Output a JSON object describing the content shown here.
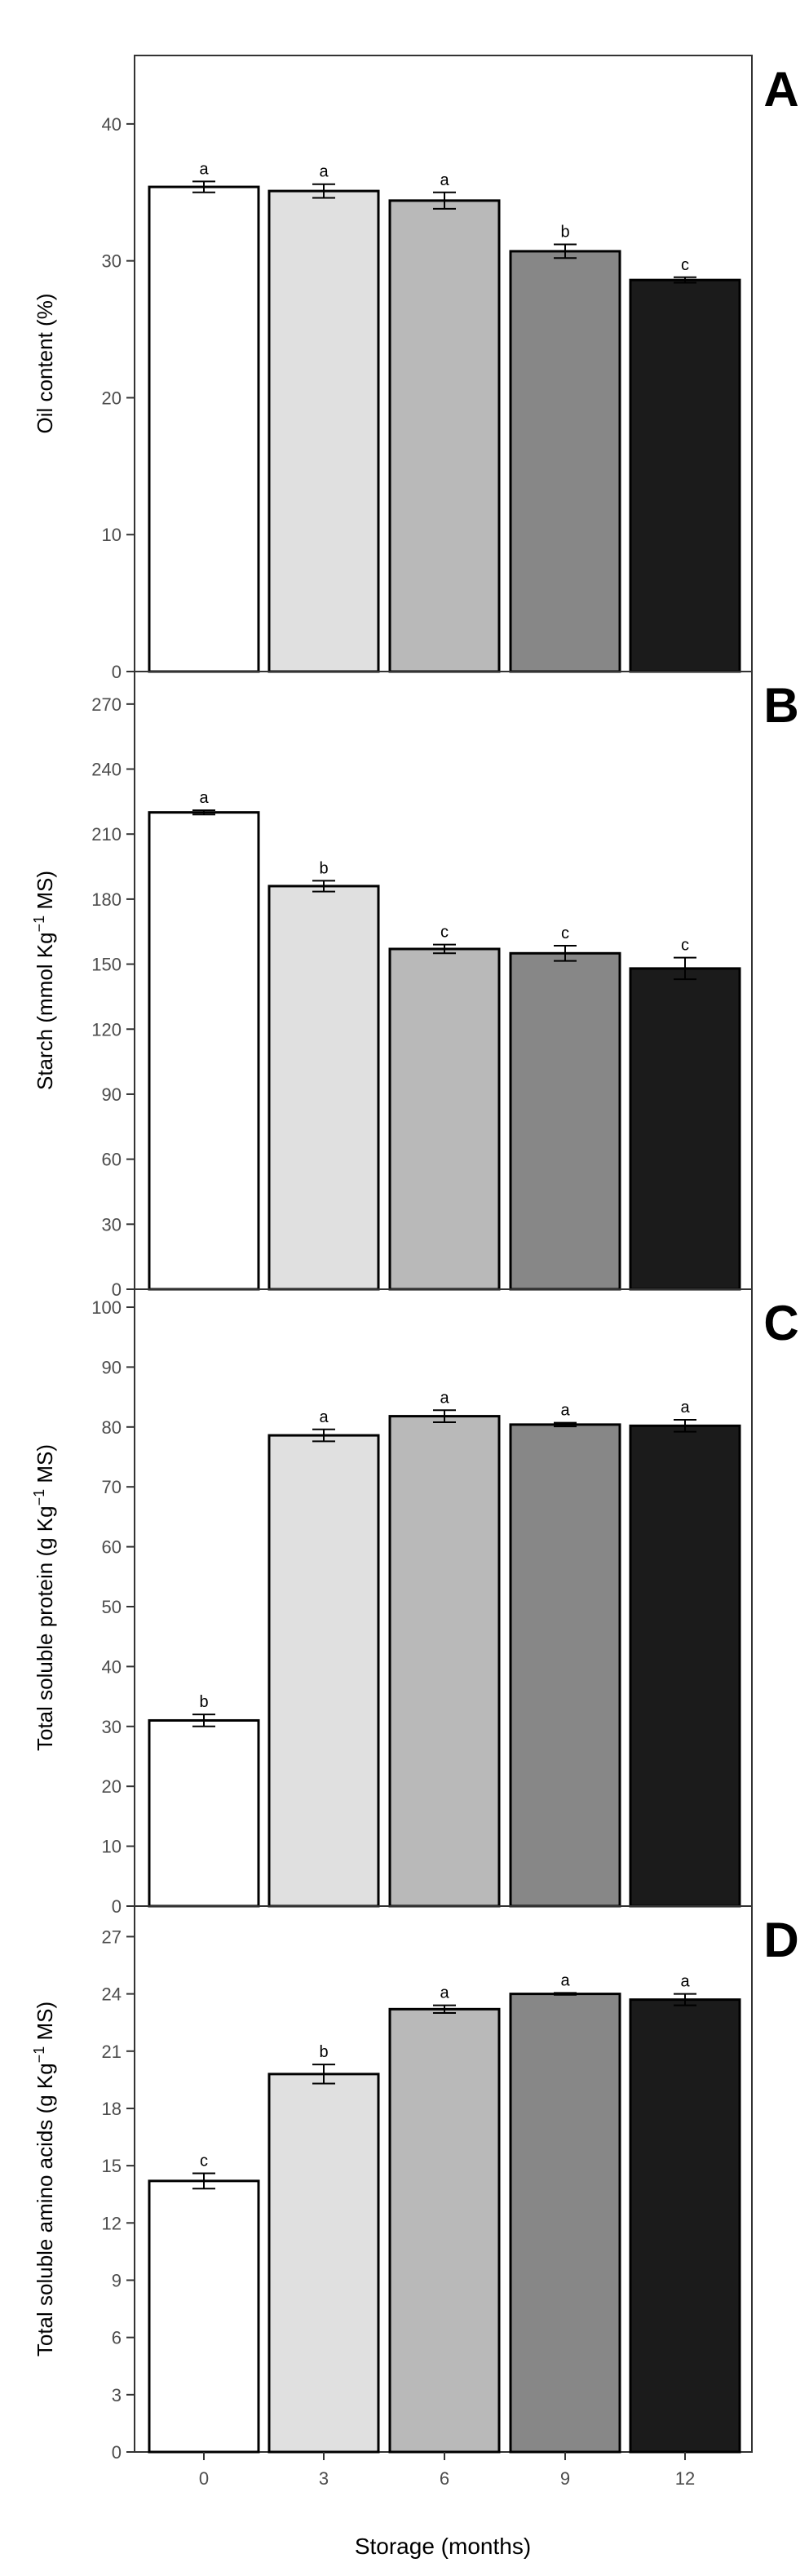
{
  "chart_data": [
    {
      "type": "bar",
      "panel": "A",
      "ylabel": "Oil content (%)",
      "ylabel_html": [
        "Oil content (%)"
      ],
      "ylim": [
        0,
        45
      ],
      "yticks": [
        0,
        10,
        20,
        30,
        40
      ],
      "categories": [
        "0",
        "3",
        "6",
        "9",
        "12"
      ],
      "values": [
        35.4,
        35.1,
        34.4,
        30.7,
        28.6
      ],
      "errors": [
        0.4,
        0.5,
        0.6,
        0.5,
        0.2
      ],
      "letters": [
        "a",
        "a",
        "a",
        "b",
        "c"
      ]
    },
    {
      "type": "bar",
      "panel": "B",
      "ylabel": "Starch (mmol Kg−1 MS)",
      "ylabel_parts": {
        "pre": "Starch (mmol Kg",
        "sup": "−1",
        "post": " MS)"
      },
      "ylim": [
        0,
        285
      ],
      "yticks": [
        0,
        30,
        60,
        90,
        120,
        150,
        180,
        210,
        240,
        270
      ],
      "categories": [
        "0",
        "3",
        "6",
        "9",
        "12"
      ],
      "values": [
        220,
        186,
        157,
        155,
        148
      ],
      "errors": [
        1,
        2.5,
        2,
        3.5,
        5
      ],
      "letters": [
        "a",
        "b",
        "c",
        "c",
        "c"
      ]
    },
    {
      "type": "bar",
      "panel": "C",
      "ylabel": "Total soluble protein (g Kg−1 MS)",
      "ylabel_parts": {
        "pre": "Total soluble protein (g Kg",
        "sup": "−1",
        "post": " MS)"
      },
      "ylim": [
        0,
        103
      ],
      "yticks": [
        0,
        10,
        20,
        30,
        40,
        50,
        60,
        70,
        80,
        90,
        100
      ],
      "categories": [
        "0",
        "3",
        "6",
        "9",
        "12"
      ],
      "values": [
        31,
        78.6,
        81.8,
        80.4,
        80.2
      ],
      "errors": [
        1,
        1,
        1,
        0.3,
        1
      ],
      "letters": [
        "b",
        "a",
        "a",
        "a",
        "a"
      ]
    },
    {
      "type": "bar",
      "panel": "D",
      "ylabel": "Total soluble amino acids (g Kg−1 MS)",
      "ylabel_parts": {
        "pre": "Total soluble amino acids (g Kg",
        "sup": "−1",
        "post": " MS)"
      },
      "ylim": [
        0,
        28.6
      ],
      "yticks": [
        0,
        3,
        6,
        9,
        12,
        15,
        18,
        21,
        24,
        27
      ],
      "categories": [
        "0",
        "3",
        "6",
        "9",
        "12"
      ],
      "values": [
        14.2,
        19.8,
        23.2,
        24,
        23.7
      ],
      "errors": [
        0.4,
        0.5,
        0.2,
        0.05,
        0.3
      ],
      "letters": [
        "c",
        "b",
        "a",
        "a",
        "a"
      ]
    }
  ],
  "shared": {
    "xlabel": "Storage (months)",
    "colors": [
      "#ffffff",
      "#e0e0e0",
      "#b9b9b9",
      "#878787",
      "#1b1b1b"
    ],
    "axis_color": "#333333",
    "grid": false,
    "legend": "none"
  }
}
